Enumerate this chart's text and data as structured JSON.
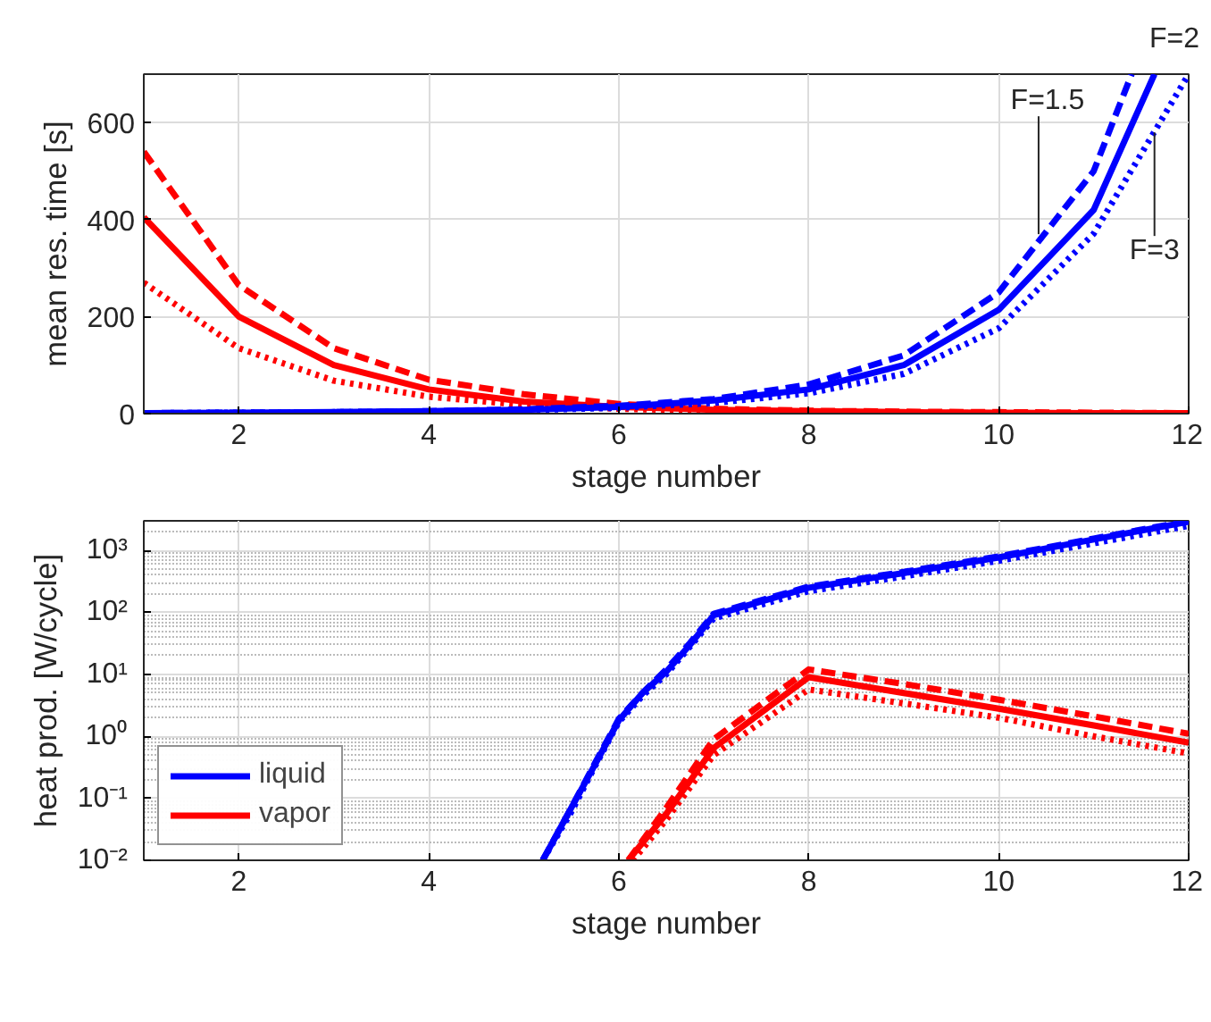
{
  "chart_data": [
    {
      "type": "line",
      "xlabel": "stage number",
      "ylabel": "mean res. time [s]",
      "xlim": [
        1,
        12
      ],
      "xticks": [
        2,
        4,
        6,
        8,
        10,
        12
      ],
      "ylim": [
        0,
        700
      ],
      "yticks": [
        0,
        200,
        400,
        600
      ],
      "grid": true,
      "legend": false,
      "series": [
        {
          "color": "#ff0000",
          "line_style": "dashed",
          "x": [
            1,
            2,
            3,
            4,
            5,
            6,
            7,
            8,
            9,
            10,
            11,
            12
          ],
          "values": [
            540,
            265,
            135,
            70,
            40,
            20,
            10,
            6,
            4,
            3,
            2,
            1
          ]
        },
        {
          "color": "#ff0000",
          "line_style": "solid",
          "x": [
            1,
            2,
            3,
            4,
            5,
            6,
            7,
            8,
            9,
            10,
            11,
            12
          ],
          "values": [
            405,
            200,
            100,
            50,
            25,
            14,
            8,
            5,
            3,
            2,
            1,
            1
          ]
        },
        {
          "color": "#ff0000",
          "line_style": "dotted",
          "x": [
            1,
            2,
            3,
            4,
            5,
            6,
            7,
            8,
            9,
            10,
            11,
            12
          ],
          "values": [
            270,
            135,
            68,
            35,
            18,
            10,
            6,
            3,
            2,
            1,
            1,
            1
          ]
        },
        {
          "color": "#0000ff",
          "line_style": "dashed",
          "x": [
            1,
            2,
            3,
            4,
            5,
            6,
            7,
            8,
            9,
            10,
            11,
            11.4
          ],
          "values": [
            1,
            2,
            3,
            5,
            9,
            16,
            30,
            60,
            120,
            250,
            500,
            700
          ]
        },
        {
          "color": "#0000ff",
          "line_style": "solid",
          "x": [
            1,
            2,
            3,
            4,
            5,
            6,
            7,
            8,
            9,
            10,
            11,
            11.64
          ],
          "values": [
            1,
            2,
            3,
            5,
            8,
            14,
            27,
            50,
            100,
            214,
            420,
            700
          ]
        },
        {
          "color": "#0000ff",
          "line_style": "dotted",
          "x": [
            1,
            2,
            3,
            4,
            5,
            6,
            7,
            8,
            9,
            10,
            11,
            12
          ],
          "values": [
            1,
            2,
            3,
            4,
            7,
            12,
            22,
            42,
            82,
            176,
            371,
            700
          ]
        }
      ],
      "annotations": [
        "F=2",
        {
          "text": "F=1.5",
          "x": 10.42,
          "y": 370
        },
        {
          "text": "F=3",
          "x": 11.64,
          "y": 580
        }
      ]
    },
    {
      "type": "line",
      "xlabel": "stage number",
      "ylabel": "heat prod. [W/cycle]",
      "xlim": [
        1,
        12
      ],
      "xticks": [
        2,
        4,
        6,
        8,
        10,
        12
      ],
      "ylim": [
        0.01,
        3000
      ],
      "log": "y",
      "yticks": [
        {
          "value": 0.01,
          "label": "10⁻²"
        },
        {
          "value": 0.1,
          "label": "10⁻¹"
        },
        {
          "value": 1,
          "label": "10⁰"
        },
        {
          "value": 10,
          "label": "10¹"
        },
        {
          "value": 100,
          "label": "10²"
        },
        {
          "value": 1000,
          "label": "10³"
        }
      ],
      "grid": true,
      "legend": "bottom left",
      "series": [
        {
          "name": "liquid",
          "color": "#0000ff",
          "line_style": "solid",
          "x": [
            5.2,
            5.5,
            5.75,
            6,
            6.25,
            6.5,
            6.75,
            7,
            8,
            9,
            10,
            11,
            12
          ],
          "values": [
            0.01,
            0.07,
            0.35,
            1.8,
            5,
            11,
            30,
            90,
            250,
            430,
            770,
            1500,
            2900
          ]
        },
        {
          "color": "#0000ff",
          "line_style": "dashed",
          "x": [
            5.2,
            5.5,
            5.75,
            6,
            6.25,
            6.5,
            6.75,
            7,
            8,
            9,
            10,
            11,
            12
          ],
          "values": [
            0.01,
            0.07,
            0.37,
            1.9,
            5,
            12,
            32,
            95,
            260,
            450,
            800,
            1550,
            3000
          ]
        },
        {
          "color": "#0000ff",
          "line_style": "dotted",
          "x": [
            5.2,
            5.5,
            5.75,
            6,
            6.25,
            6.5,
            6.75,
            7,
            8,
            9,
            10,
            11,
            12
          ],
          "values": [
            0.01,
            0.06,
            0.33,
            1.7,
            4.5,
            10,
            28,
            80,
            220,
            380,
            680,
            1300,
            2500
          ]
        },
        {
          "name": "vapor",
          "color": "#ff0000",
          "line_style": "solid",
          "x": [
            6.1,
            6.5,
            7,
            8,
            9,
            10,
            11,
            12
          ],
          "values": [
            0.01,
            0.056,
            0.65,
            9,
            5,
            2.8,
            1.5,
            0.79
          ]
        },
        {
          "color": "#ff0000",
          "line_style": "dashed",
          "x": [
            6.1,
            6.5,
            7,
            8,
            9,
            10,
            11,
            12
          ],
          "values": [
            0.01,
            0.07,
            0.9,
            12,
            7,
            3.9,
            2.1,
            1.1
          ]
        },
        {
          "color": "#ff0000",
          "line_style": "dotted",
          "x": [
            6.15,
            6.5,
            7,
            8,
            9,
            10,
            11,
            12
          ],
          "values": [
            0.01,
            0.045,
            0.5,
            5.7,
            3.4,
            2,
            1,
            0.53
          ]
        }
      ]
    }
  ]
}
